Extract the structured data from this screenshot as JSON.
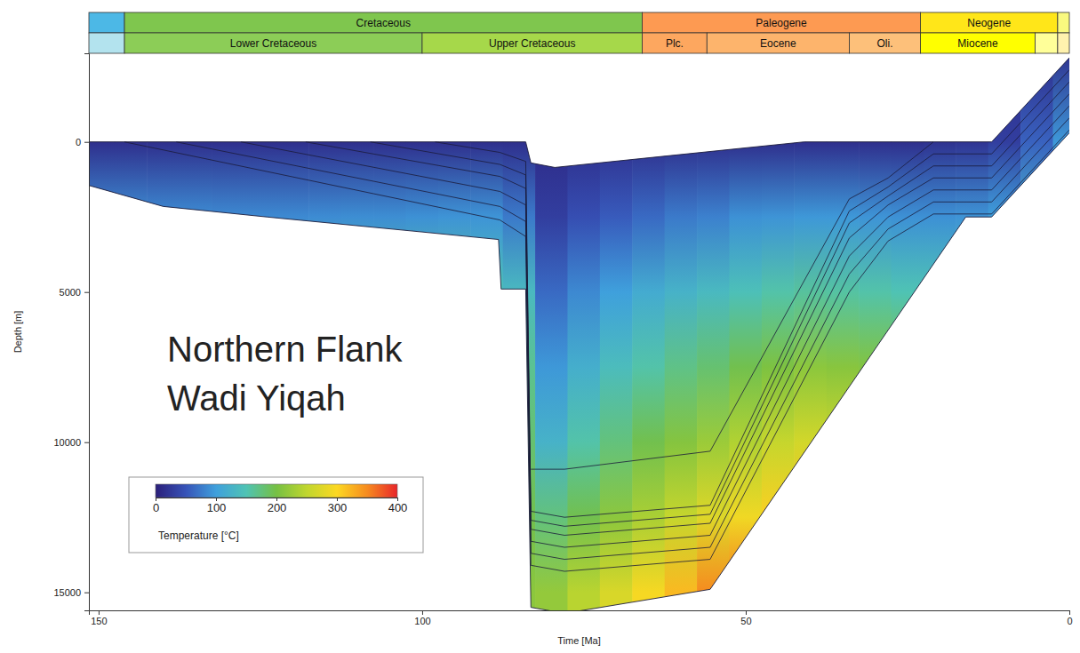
{
  "chart_data": {
    "type": "burial_history",
    "annotations": [
      "Northern Flank",
      "Wadi Yiqah"
    ],
    "x_label": "Time [Ma]",
    "y_label": "Depth [m]",
    "xlim": [
      151.5,
      0
    ],
    "xticks": [
      150,
      100,
      50,
      0
    ],
    "ylim": [
      -2950,
      15600
    ],
    "yticks": [
      0,
      5000,
      10000,
      15000
    ],
    "time_scale": [
      [
        {
          "label": null,
          "start": 151.5,
          "end": 146,
          "color": "#4cb8e6"
        },
        {
          "label": "Cretaceous",
          "start": 146,
          "end": 66,
          "color": "#7fc64e"
        },
        {
          "label": "Paleogene",
          "start": 66,
          "end": 23,
          "color": "#fd9a52"
        },
        {
          "label": "Neogene",
          "start": 23,
          "end": 1.8,
          "color": "#ffe619"
        },
        {
          "label": null,
          "start": 1.8,
          "end": 0,
          "color": "#f9f97f"
        }
      ],
      [
        {
          "label": null,
          "start": 151.5,
          "end": 146,
          "color": "#b3e3ee"
        },
        {
          "label": "Lower Cretaceous",
          "start": 146,
          "end": 100,
          "color": "#8ccd57"
        },
        {
          "label": "Upper Cretaceous",
          "start": 100,
          "end": 66,
          "color": "#a6d84a"
        },
        {
          "label": "Plc.",
          "start": 66,
          "end": 56,
          "color": "#fda75f"
        },
        {
          "label": "Eocene",
          "start": 56,
          "end": 34,
          "color": "#fdb46c"
        },
        {
          "label": "Oli.",
          "start": 34,
          "end": 23,
          "color": "#fdc07a"
        },
        {
          "label": "Miocene",
          "start": 23,
          "end": 5.3,
          "color": "#ffff00"
        },
        {
          "label": null,
          "start": 5.3,
          "end": 1.8,
          "color": "#ffff99"
        },
        {
          "label": null,
          "start": 1.8,
          "end": 0,
          "color": "#fff2ae"
        }
      ]
    ],
    "surface": {
      "time": [
        151.5,
        84,
        83.2,
        79.5,
        41,
        21,
        12,
        0
      ],
      "depth": [
        0,
        0,
        700,
        850,
        0,
        0,
        0,
        -2800
      ]
    },
    "base": {
      "time": [
        151.5,
        140,
        124,
        100,
        88.2,
        87.8,
        84,
        83.2,
        78,
        55.5,
        16,
        12,
        0
      ],
      "depth": [
        1450,
        2150,
        2500,
        3000,
        3250,
        4900,
        4900,
        15500,
        15700,
        14900,
        2500,
        2500,
        -300
      ]
    },
    "horizons": [
      {
        "time": [
          146,
          88,
          84,
          83.2,
          78,
          55.5,
          34,
          28,
          21,
          12,
          0
        ],
        "depth": [
          0,
          2600,
          3150,
          14100,
          14300,
          13900,
          5000,
          3300,
          2400,
          2400,
          -400
        ]
      },
      {
        "time": [
          138,
          88,
          84,
          83.2,
          78,
          55.5,
          34,
          28,
          21,
          12,
          0
        ],
        "depth": [
          0,
          2150,
          2650,
          13700,
          13900,
          13500,
          4400,
          2900,
          2000,
          2000,
          -800
        ]
      },
      {
        "time": [
          128,
          88,
          84,
          83.2,
          78,
          55.5,
          34,
          28,
          21,
          12,
          0
        ],
        "depth": [
          0,
          1650,
          2100,
          13300,
          13500,
          13100,
          3800,
          2500,
          1600,
          1600,
          -1200
        ]
      },
      {
        "time": [
          118,
          88,
          84,
          83.2,
          78,
          55.5,
          34,
          28,
          21,
          12,
          0
        ],
        "depth": [
          0,
          1150,
          1550,
          12900,
          13100,
          12700,
          3200,
          2100,
          1200,
          1200,
          -1600
        ]
      },
      {
        "time": [
          108,
          88,
          84,
          83.2,
          78,
          55.5,
          34,
          28,
          21,
          12,
          0
        ],
        "depth": [
          0,
          750,
          1100,
          12600,
          12800,
          12400,
          2700,
          1800,
          800,
          800,
          -2000
        ]
      },
      {
        "time": [
          98,
          88,
          84,
          83.2,
          78,
          55.5,
          34,
          28,
          21,
          12,
          0
        ],
        "depth": [
          0,
          350,
          650,
          12300,
          12500,
          12100,
          2300,
          1500,
          400,
          400,
          -2400
        ]
      },
      {
        "time": [
          83.2,
          78,
          55.5,
          34,
          28,
          21
        ],
        "depth": [
          10900,
          10900,
          10300,
          1900,
          1200,
          0
        ]
      }
    ],
    "temperature": {
      "time": [
        150,
        145,
        140,
        135,
        130,
        125,
        120,
        115,
        110,
        105,
        100,
        95,
        90,
        85,
        80,
        75,
        70,
        65,
        60,
        55,
        50,
        45,
        40,
        35,
        30,
        25,
        20,
        15,
        10,
        5,
        0
      ],
      "depth": [
        -3000,
        0,
        2500,
        5000,
        7500,
        10000,
        12500,
        15000
      ],
      "values": [
        [
          10,
          15,
          88,
          158,
          225,
          285,
          335,
          375
        ],
        [
          10,
          15,
          88,
          158,
          225,
          285,
          335,
          375
        ],
        [
          10,
          15,
          87,
          157,
          225,
          285,
          335,
          375
        ],
        [
          10,
          15,
          87,
          157,
          225,
          285,
          335,
          375
        ],
        [
          10,
          15,
          86,
          156,
          225,
          285,
          335,
          375
        ],
        [
          10,
          15,
          86,
          156,
          225,
          285,
          335,
          375
        ],
        [
          10,
          15,
          86,
          155,
          225,
          285,
          335,
          375
        ],
        [
          10,
          15,
          87,
          156,
          225,
          285,
          335,
          375
        ],
        [
          10,
          15,
          88,
          157,
          225,
          285,
          335,
          375
        ],
        [
          10,
          15,
          88,
          158,
          225,
          285,
          335,
          375
        ],
        [
          10,
          15,
          90,
          160,
          225,
          285,
          335,
          375
        ],
        [
          10,
          15,
          92,
          160,
          225,
          285,
          335,
          375
        ],
        [
          10,
          15,
          92,
          150,
          200,
          260,
          320,
          370
        ],
        [
          10,
          15,
          75,
          135,
          165,
          180,
          195,
          215
        ],
        [
          10,
          12,
          30,
          65,
          95,
          125,
          175,
          220
        ],
        [
          10,
          14,
          45,
          85,
          120,
          155,
          195,
          245
        ],
        [
          10,
          15,
          55,
          100,
          140,
          175,
          215,
          270
        ],
        [
          10,
          15,
          65,
          115,
          155,
          195,
          235,
          295
        ],
        [
          10,
          15,
          75,
          125,
          170,
          210,
          255,
          320
        ],
        [
          10,
          15,
          80,
          135,
          180,
          225,
          275,
          350
        ],
        [
          10,
          15,
          90,
          145,
          195,
          240,
          290,
          360
        ],
        [
          10,
          15,
          92,
          155,
          205,
          255,
          305,
          365
        ],
        [
          10,
          15,
          95,
          160,
          215,
          265,
          315,
          370
        ],
        [
          10,
          15,
          95,
          158,
          212,
          262,
          312,
          365
        ],
        [
          10,
          15,
          92,
          155,
          208,
          258,
          308,
          360
        ],
        [
          10,
          15,
          90,
          150,
          205,
          255,
          305,
          355
        ],
        [
          10,
          18,
          90,
          150,
          205,
          255,
          305,
          355
        ],
        [
          10,
          20,
          92,
          152,
          205,
          255,
          305,
          355
        ],
        [
          12,
          30,
          100,
          160,
          210,
          260,
          310,
          360
        ],
        [
          12,
          60,
          120,
          175,
          225,
          270,
          320,
          365
        ],
        [
          15,
          95,
          150,
          200,
          245,
          290,
          335,
          375
        ]
      ]
    },
    "colorbar": {
      "label": "Temperature [°C]",
      "range": [
        0,
        400
      ],
      "ticks": [
        0,
        100,
        200,
        300,
        400
      ],
      "colors": [
        "#2b1f7a",
        "#3753b8",
        "#3fa0dc",
        "#4fc3b4",
        "#76c043",
        "#c0d62e",
        "#fcd822",
        "#f68b1f",
        "#e8262a"
      ]
    }
  }
}
